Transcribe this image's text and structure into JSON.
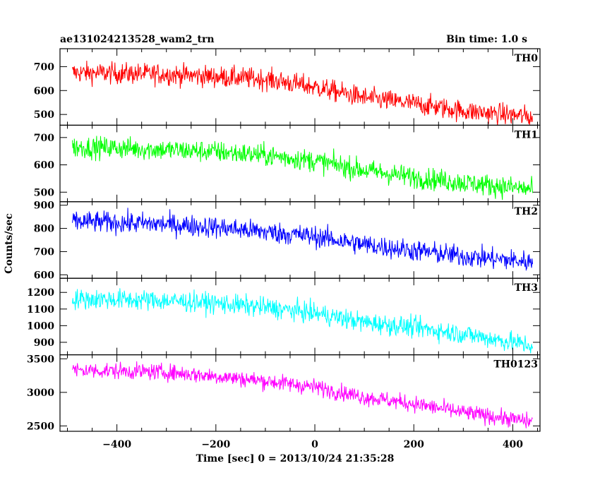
{
  "chart_data": {
    "type": "line",
    "title": "ae131024213528_wam2_trn",
    "subtitle": "Bin time: 1.0 s",
    "xlabel": "Time [sec] 0 = 2013/10/24 21:35:28",
    "ylabel": "Counts/sec",
    "xlim": [
      -515,
      455
    ],
    "xticks": [
      -400,
      -200,
      0,
      200,
      400
    ],
    "x_range_data": [
      -490,
      440
    ],
    "bin_time_s": 1.0,
    "grid": false,
    "panels": [
      {
        "name": "TH0",
        "color": "#ff0000",
        "ylim": [
          455,
          775
        ],
        "yticks": [
          500,
          600,
          700
        ],
        "trend_x": [
          -490,
          -400,
          -300,
          -200,
          -100,
          0,
          100,
          200,
          300,
          440
        ],
        "trend_y": [
          675,
          672,
          668,
          658,
          648,
          615,
          570,
          545,
          515,
          490
        ],
        "noise_amplitude": 40
      },
      {
        "name": "TH1",
        "color": "#00ff00",
        "ylim": [
          465,
          745
        ],
        "yticks": [
          500,
          600,
          700
        ],
        "trend_x": [
          -490,
          -400,
          -300,
          -200,
          -100,
          0,
          100,
          200,
          300,
          440
        ],
        "trend_y": [
          665,
          662,
          655,
          648,
          635,
          615,
          580,
          555,
          535,
          510
        ],
        "noise_amplitude": 36
      },
      {
        "name": "TH2",
        "color": "#0000ff",
        "ylim": [
          585,
          915
        ],
        "yticks": [
          600,
          700,
          800,
          900
        ],
        "trend_x": [
          -490,
          -400,
          -300,
          -200,
          -100,
          0,
          100,
          200,
          300,
          440
        ],
        "trend_y": [
          830,
          825,
          818,
          805,
          785,
          765,
          730,
          705,
          680,
          655
        ],
        "noise_amplitude": 42
      },
      {
        "name": "TH3",
        "color": "#00ffff",
        "ylim": [
          825,
          1285
        ],
        "yticks": [
          900,
          1000,
          1100,
          1200
        ],
        "trend_x": [
          -490,
          -400,
          -300,
          -200,
          -100,
          0,
          100,
          200,
          300,
          440
        ],
        "trend_y": [
          1160,
          1158,
          1150,
          1135,
          1110,
          1075,
          1020,
          990,
          950,
          880
        ],
        "noise_amplitude": 55
      },
      {
        "name": "TH0123",
        "color": "#ff00ff",
        "ylim": [
          2420,
          3560
        ],
        "yticks": [
          2500,
          3000,
          3500
        ],
        "trend_x": [
          -490,
          -400,
          -300,
          -200,
          -100,
          0,
          100,
          200,
          300,
          440
        ],
        "trend_y": [
          3330,
          3320,
          3300,
          3240,
          3170,
          3080,
          2930,
          2830,
          2700,
          2560
        ],
        "noise_amplitude": 110
      }
    ]
  }
}
